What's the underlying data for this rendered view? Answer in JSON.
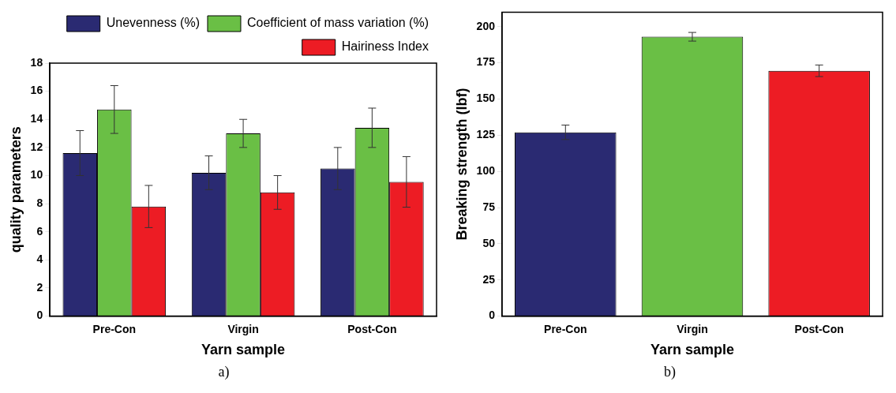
{
  "chart_data": [
    {
      "type": "bar",
      "categories": [
        "Pre-Con",
        "Virgin",
        "Post-Con"
      ],
      "xlabel": "Yarn sample",
      "ylabel": "quality parameters",
      "ylim": [
        0,
        18
      ],
      "yticks": [
        0,
        2,
        4,
        6,
        8,
        10,
        12,
        14,
        16,
        18
      ],
      "legend": "top right",
      "grid": false,
      "annotations": [
        "a)"
      ],
      "series": [
        {
          "name": "Unevenness (%)",
          "color": "#2a2a72",
          "values": [
            11.6,
            10.2,
            10.5
          ],
          "errors": [
            1.6,
            1.2,
            1.5
          ]
        },
        {
          "name": "Coefficient of mass variation (%)",
          "color": "#6abf45",
          "values": [
            14.7,
            13.0,
            13.4
          ],
          "errors": [
            1.7,
            1.0,
            1.4
          ]
        },
        {
          "name": "Hairiness Index",
          "color": "#ed1c24",
          "values": [
            7.8,
            8.8,
            9.55
          ],
          "errors": [
            1.5,
            1.2,
            1.8
          ]
        }
      ]
    },
    {
      "type": "bar",
      "categories": [
        "Pre-Con",
        "Virgin",
        "Post-Con"
      ],
      "xlabel": "Yarn sample",
      "ylabel": "Breaking strength (lbf)",
      "ylim": [
        0,
        210
      ],
      "yticks": [
        0,
        25,
        50,
        75,
        100,
        125,
        150,
        175,
        200
      ],
      "legend": false,
      "grid": false,
      "annotations": [
        "b)"
      ],
      "values": [
        127,
        193,
        169.5
      ],
      "errors": [
        5,
        3,
        4
      ],
      "colors": [
        "#2a2a72",
        "#6abf45",
        "#ed1c24"
      ]
    }
  ]
}
